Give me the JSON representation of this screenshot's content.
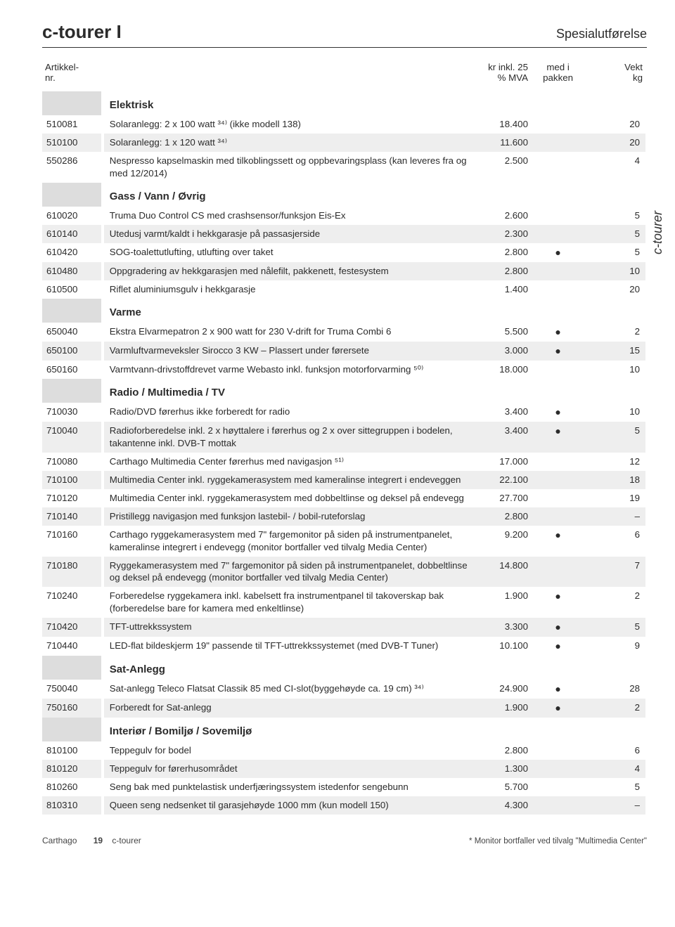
{
  "header": {
    "title": "c-tourer I",
    "sub": "Spesialutførelse"
  },
  "sideTab": "c-tourer",
  "columns": {
    "c1a": "Artikkel-",
    "c1b": "nr.",
    "c3a": "kr inkl. 25",
    "c3b": "% MVA",
    "c4a": "med i",
    "c4b": "pakken",
    "c5a": "Vekt",
    "c5b": "kg"
  },
  "styling": {
    "stripe_bg": "#eeeeee",
    "art_bg": "#dddddd",
    "text_color": "#2b2b2b",
    "border_color": "#333333",
    "font_size_body": 13.3,
    "font_size_header": 26
  },
  "sections": [
    {
      "title": "Elektrisk",
      "rows": [
        {
          "art": "510081",
          "desc": "Solaranlegg: 2 x 100 watt ³⁴⁾ (ikke modell 138)",
          "price": "18.400",
          "pack": "",
          "wt": "20"
        },
        {
          "art": "510100",
          "desc": "Solaranlegg: 1 x 120 watt ³⁴⁾",
          "price": "11.600",
          "pack": "",
          "wt": "20"
        },
        {
          "art": "550286",
          "desc": "Nespresso kapselmaskin med tilkoblingssett og oppbevaringsplass (kan leveres fra og med 12/2014)",
          "price": "2.500",
          "pack": "",
          "wt": "4"
        }
      ]
    },
    {
      "title": "Gass / Vann / Øvrig",
      "rows": [
        {
          "art": "610020",
          "desc": "Truma Duo Control CS med crashsensor/funksjon Eis-Ex",
          "price": "2.600",
          "pack": "",
          "wt": "5"
        },
        {
          "art": "610140",
          "desc": "Utedusj varmt/kaldt i hekkgarasje på passasjerside",
          "price": "2.300",
          "pack": "",
          "wt": "5"
        },
        {
          "art": "610420",
          "desc": "SOG-toalettutlufting, utlufting over taket",
          "price": "2.800",
          "pack": "●",
          "wt": "5"
        },
        {
          "art": "610480",
          "desc": "Oppgradering av hekkgarasjen med nålefilt, pakkenett, festesystem",
          "price": "2.800",
          "pack": "",
          "wt": "10"
        },
        {
          "art": "610500",
          "desc": "Riflet aluminiumsgulv i hekkgarasje",
          "price": "1.400",
          "pack": "",
          "wt": "20"
        }
      ]
    },
    {
      "title": "Varme",
      "rows": [
        {
          "art": "650040",
          "desc": "Ekstra Elvarmepatron 2 x 900 watt for 230 V-drift for Truma Combi 6",
          "price": "5.500",
          "pack": "●",
          "wt": "2"
        },
        {
          "art": "650100",
          "desc": "Varmluftvarmeveksler Sirocco 3 KW – Plassert under førersete",
          "price": "3.000",
          "pack": "●",
          "wt": "15"
        },
        {
          "art": "650160",
          "desc": "Varmtvann-drivstoffdrevet varme Webasto inkl. funksjon motorforvarming ⁵⁰⁾",
          "price": "18.000",
          "pack": "",
          "wt": "10"
        }
      ]
    },
    {
      "title": "Radio / Multimedia / TV",
      "rows": [
        {
          "art": "710030",
          "desc": "Radio/DVD førerhus ikke forberedt for radio",
          "price": "3.400",
          "pack": "●",
          "wt": "10"
        },
        {
          "art": "710040",
          "desc": "Radioforberedelse inkl. 2 x høyttalere i førerhus og 2 x over sittegruppen i bodelen, takantenne inkl. DVB-T mottak",
          "price": "3.400",
          "pack": "●",
          "wt": "5"
        },
        {
          "art": "710080",
          "desc": "Carthago Multimedia Center førerhus med navigasjon ⁵¹⁾",
          "price": "17.000",
          "pack": "",
          "wt": "12"
        },
        {
          "art": "710100",
          "desc": "Multimedia Center inkl. ryggekamerasystem med kameralinse integrert i endeveggen",
          "price": "22.100",
          "pack": "",
          "wt": "18"
        },
        {
          "art": "710120",
          "desc": "Multimedia Center inkl. ryggekamerasystem med dobbeltlinse og deksel på endevegg",
          "price": "27.700",
          "pack": "",
          "wt": "19"
        },
        {
          "art": "710140",
          "desc": "Pristillegg navigasjon med funksjon lastebil- / bobil-ruteforslag",
          "price": "2.800",
          "pack": "",
          "wt": "–"
        },
        {
          "art": "710160",
          "desc": "Carthago ryggekamerasystem med 7\" fargemonitor på siden på instrumentpanelet, kameralinse integrert i endevegg (monitor bortfaller ved tilvalg Media Center)",
          "price": "9.200",
          "pack": "●",
          "wt": "6"
        },
        {
          "art": "710180",
          "desc": "Ryggekamerasystem med 7\" fargemonitor på siden på instrumentpanelet, dobbeltlinse og deksel på endevegg (monitor bortfaller ved tilvalg Media Center)",
          "price": "14.800",
          "pack": "",
          "wt": "7"
        },
        {
          "art": "710240",
          "desc": "Forberedelse ryggekamera inkl. kabelsett fra instrumentpanel til takoverskap bak (forberedelse bare for kamera med enkeltlinse)",
          "price": "1.900",
          "pack": "●",
          "wt": "2"
        },
        {
          "art": "710420",
          "desc": "TFT-uttrekkssystem",
          "price": "3.300",
          "pack": "●",
          "wt": "5"
        },
        {
          "art": "710440",
          "desc": "LED-flat bildeskjerm 19\" passende til TFT-uttrekkssystemet (med DVB-T Tuner)",
          "price": "10.100",
          "pack": "●",
          "wt": "9"
        }
      ]
    },
    {
      "title": "Sat-Anlegg",
      "rows": [
        {
          "art": "750040",
          "desc": "Sat-anlegg Teleco Flatsat Classik 85 med CI-slot(byggehøyde ca. 19 cm) ³⁴⁾",
          "price": "24.900",
          "pack": "●",
          "wt": "28"
        },
        {
          "art": "750160",
          "desc": "Forberedt for Sat-anlegg",
          "price": "1.900",
          "pack": "●",
          "wt": "2"
        }
      ]
    },
    {
      "title": "Interiør / Bomiljø / Sovemiljø",
      "rows": [
        {
          "art": "810100",
          "desc": "Teppegulv for bodel",
          "price": "2.800",
          "pack": "",
          "wt": "6"
        },
        {
          "art": "810120",
          "desc": "Teppegulv for førerhusområdet",
          "price": "1.300",
          "pack": "",
          "wt": "4"
        },
        {
          "art": "810260",
          "desc": "Seng bak med punktelastisk underfjæringssystem istedenfor sengebunn",
          "price": "5.700",
          "pack": "",
          "wt": "5"
        },
        {
          "art": "810310",
          "desc": "Queen seng nedsenket til garasjehøyde 1000 mm (kun modell 150)",
          "price": "4.300",
          "pack": "",
          "wt": "–"
        }
      ]
    }
  ],
  "footer": {
    "brand": "Carthago",
    "pagenum": "19",
    "section": "c-tourer",
    "note": "* Monitor bortfaller ved tilvalg \"Multimedia Center\""
  }
}
